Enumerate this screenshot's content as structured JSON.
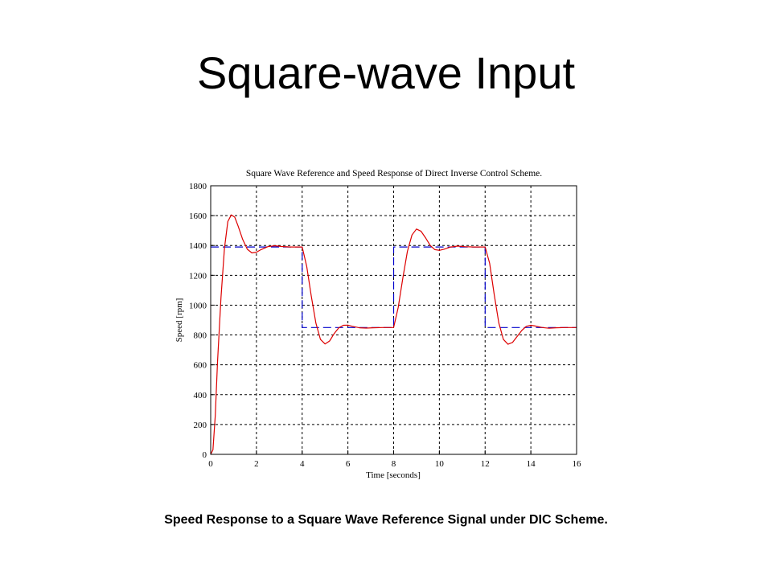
{
  "slide": {
    "title": "Square-wave Input",
    "caption": "Speed Response to a Square Wave Reference Signal under DIC Scheme."
  },
  "chart_data": {
    "type": "line",
    "title": "Square Wave Reference and Speed Response of Direct Inverse Control Scheme.",
    "xlabel": "Time [seconds]",
    "ylabel": "Speed [rpm]",
    "xlim": [
      0,
      16
    ],
    "ylim": [
      0,
      1800
    ],
    "xticks": [
      0,
      2,
      4,
      6,
      8,
      10,
      12,
      14,
      16
    ],
    "yticks": [
      0,
      200,
      400,
      600,
      800,
      1000,
      1200,
      1400,
      1600,
      1800
    ],
    "grid": true,
    "series": [
      {
        "color": "#0000cc",
        "dash": "dashed",
        "x": [
          0,
          4,
          4,
          8,
          8,
          12,
          12,
          16
        ],
        "y": [
          1390,
          1390,
          850,
          850,
          1390,
          1390,
          850,
          850
        ]
      },
      {
        "color": "#dd0000",
        "dash": "solid",
        "x": [
          0,
          0.1,
          0.2,
          0.3,
          0.45,
          0.6,
          0.75,
          0.9,
          1.05,
          1.2,
          1.4,
          1.6,
          1.8,
          2.0,
          2.2,
          2.5,
          2.8,
          3.1,
          3.5,
          4.0,
          4.2,
          4.4,
          4.6,
          4.8,
          5.0,
          5.2,
          5.4,
          5.6,
          5.8,
          6.0,
          6.2,
          6.5,
          6.8,
          7.1,
          7.5,
          8.0,
          8.2,
          8.4,
          8.6,
          8.8,
          9.0,
          9.2,
          9.4,
          9.6,
          9.8,
          10.0,
          10.2,
          10.5,
          10.8,
          11.1,
          11.5,
          12.0,
          12.2,
          12.4,
          12.6,
          12.8,
          13.0,
          13.2,
          13.4,
          13.6,
          13.8,
          14.0,
          14.2,
          14.5,
          14.8,
          15.1,
          15.5,
          16.0
        ],
        "y": [
          0,
          30,
          260,
          620,
          1050,
          1380,
          1560,
          1605,
          1590,
          1530,
          1440,
          1375,
          1350,
          1355,
          1372,
          1392,
          1398,
          1393,
          1390,
          1390,
          1260,
          1060,
          880,
          770,
          740,
          760,
          810,
          848,
          865,
          866,
          858,
          848,
          846,
          848,
          850,
          850,
          985,
          1180,
          1360,
          1470,
          1510,
          1495,
          1450,
          1400,
          1372,
          1367,
          1375,
          1390,
          1396,
          1392,
          1390,
          1390,
          1280,
          1070,
          880,
          770,
          738,
          750,
          790,
          830,
          858,
          865,
          860,
          850,
          845,
          848,
          850,
          850
        ]
      }
    ]
  }
}
